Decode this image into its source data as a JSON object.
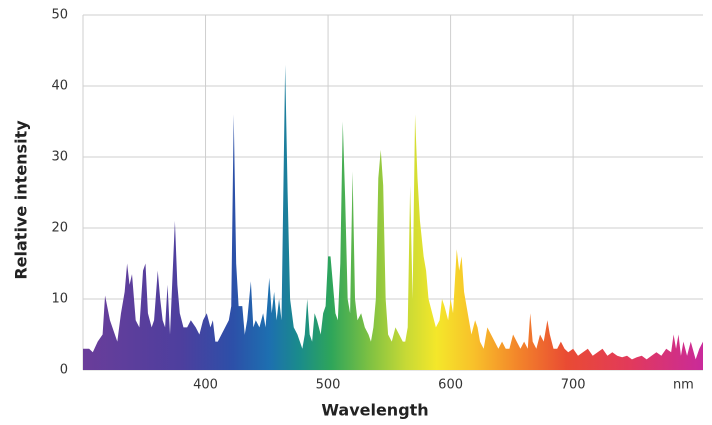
{
  "chart_data": {
    "type": "area",
    "x_label": "Wavelength",
    "y_label": "Relative intensity",
    "xlim": [
      300,
      806
    ],
    "ylim": [
      0,
      50
    ],
    "xticks": [
      400,
      500,
      600,
      700,
      {
        "value": 790,
        "label": "nm"
      }
    ],
    "yticks": [
      0,
      10,
      20,
      30,
      40,
      50
    ],
    "grid": true,
    "x": [
      300,
      305,
      308,
      312,
      316,
      318,
      322,
      326,
      328,
      331,
      334,
      336,
      338,
      340,
      343,
      346,
      349,
      351,
      353,
      356,
      358,
      361,
      363,
      365,
      367,
      369,
      371,
      373,
      375,
      377,
      379,
      382,
      385,
      388,
      392,
      395,
      398,
      401,
      404,
      406,
      408,
      410,
      413,
      416,
      419,
      421,
      423,
      425,
      427,
      430,
      432,
      434,
      437,
      439,
      441,
      444,
      447,
      449,
      452,
      454,
      456,
      458,
      460,
      462,
      465,
      467,
      469,
      472,
      475,
      477,
      479,
      481,
      483,
      485,
      487,
      489,
      491,
      494,
      496,
      498,
      500,
      502,
      504,
      506,
      508,
      510,
      512,
      514,
      516,
      518,
      520,
      522,
      524,
      527,
      530,
      533,
      535,
      537,
      539,
      541,
      543,
      545,
      547,
      549,
      552,
      555,
      558,
      561,
      563,
      565,
      567,
      569,
      571,
      573,
      575,
      578,
      580,
      582,
      585,
      588,
      591,
      593,
      595,
      598,
      600,
      602,
      605,
      607,
      609,
      611,
      613,
      615,
      617,
      620,
      622,
      624,
      627,
      630,
      633,
      636,
      639,
      642,
      645,
      648,
      651,
      654,
      657,
      660,
      663,
      665,
      667,
      670,
      673,
      676,
      679,
      681,
      684,
      687,
      690,
      693,
      696,
      700,
      704,
      708,
      712,
      716,
      720,
      724,
      728,
      732,
      736,
      740,
      744,
      748,
      752,
      756,
      760,
      764,
      768,
      772,
      776,
      780,
      782,
      784,
      786,
      788,
      790,
      793,
      796,
      800,
      803,
      806
    ],
    "values": [
      3,
      3,
      2.5,
      4,
      5,
      10.5,
      7,
      5,
      4,
      8,
      11,
      15,
      12,
      13.5,
      7,
      6,
      14,
      15,
      8,
      6,
      7,
      14,
      10,
      7,
      6,
      12,
      5,
      13,
      21,
      12,
      8,
      6,
      6,
      7,
      6,
      5,
      7,
      8,
      6,
      7,
      4,
      4,
      5,
      6,
      7,
      9,
      36,
      15,
      9,
      9,
      5,
      7,
      12.5,
      6,
      7,
      6,
      8,
      6,
      13,
      8,
      11,
      7,
      10,
      7,
      43,
      25,
      10,
      6,
      5,
      4,
      3,
      5,
      10,
      5,
      4,
      8,
      7,
      5,
      8,
      9,
      16,
      16,
      12,
      8,
      7,
      15,
      35,
      24,
      10,
      8,
      28,
      10,
      7,
      8,
      6,
      5,
      4,
      6,
      10,
      27,
      31,
      26,
      10,
      5,
      4,
      6,
      5,
      4,
      4,
      6,
      26,
      10,
      36,
      27,
      21,
      16,
      14,
      10,
      8,
      6,
      7,
      10,
      9,
      7,
      10,
      8,
      17,
      14,
      16,
      11,
      9,
      7,
      5,
      7,
      6,
      4,
      3,
      6,
      5,
      4,
      3,
      4,
      3,
      3,
      5,
      4,
      3,
      4,
      3,
      8,
      4,
      3,
      5,
      4,
      7,
      5,
      3,
      3,
      4,
      3,
      2.5,
      3,
      2,
      2.5,
      3,
      2,
      2.5,
      3,
      2,
      2.5,
      2,
      1.8,
      2,
      1.5,
      1.8,
      2,
      1.5,
      2,
      2.5,
      2,
      3,
      2.5,
      5,
      3,
      5,
      2,
      4,
      2,
      4,
      1.5,
      3,
      4
    ]
  }
}
